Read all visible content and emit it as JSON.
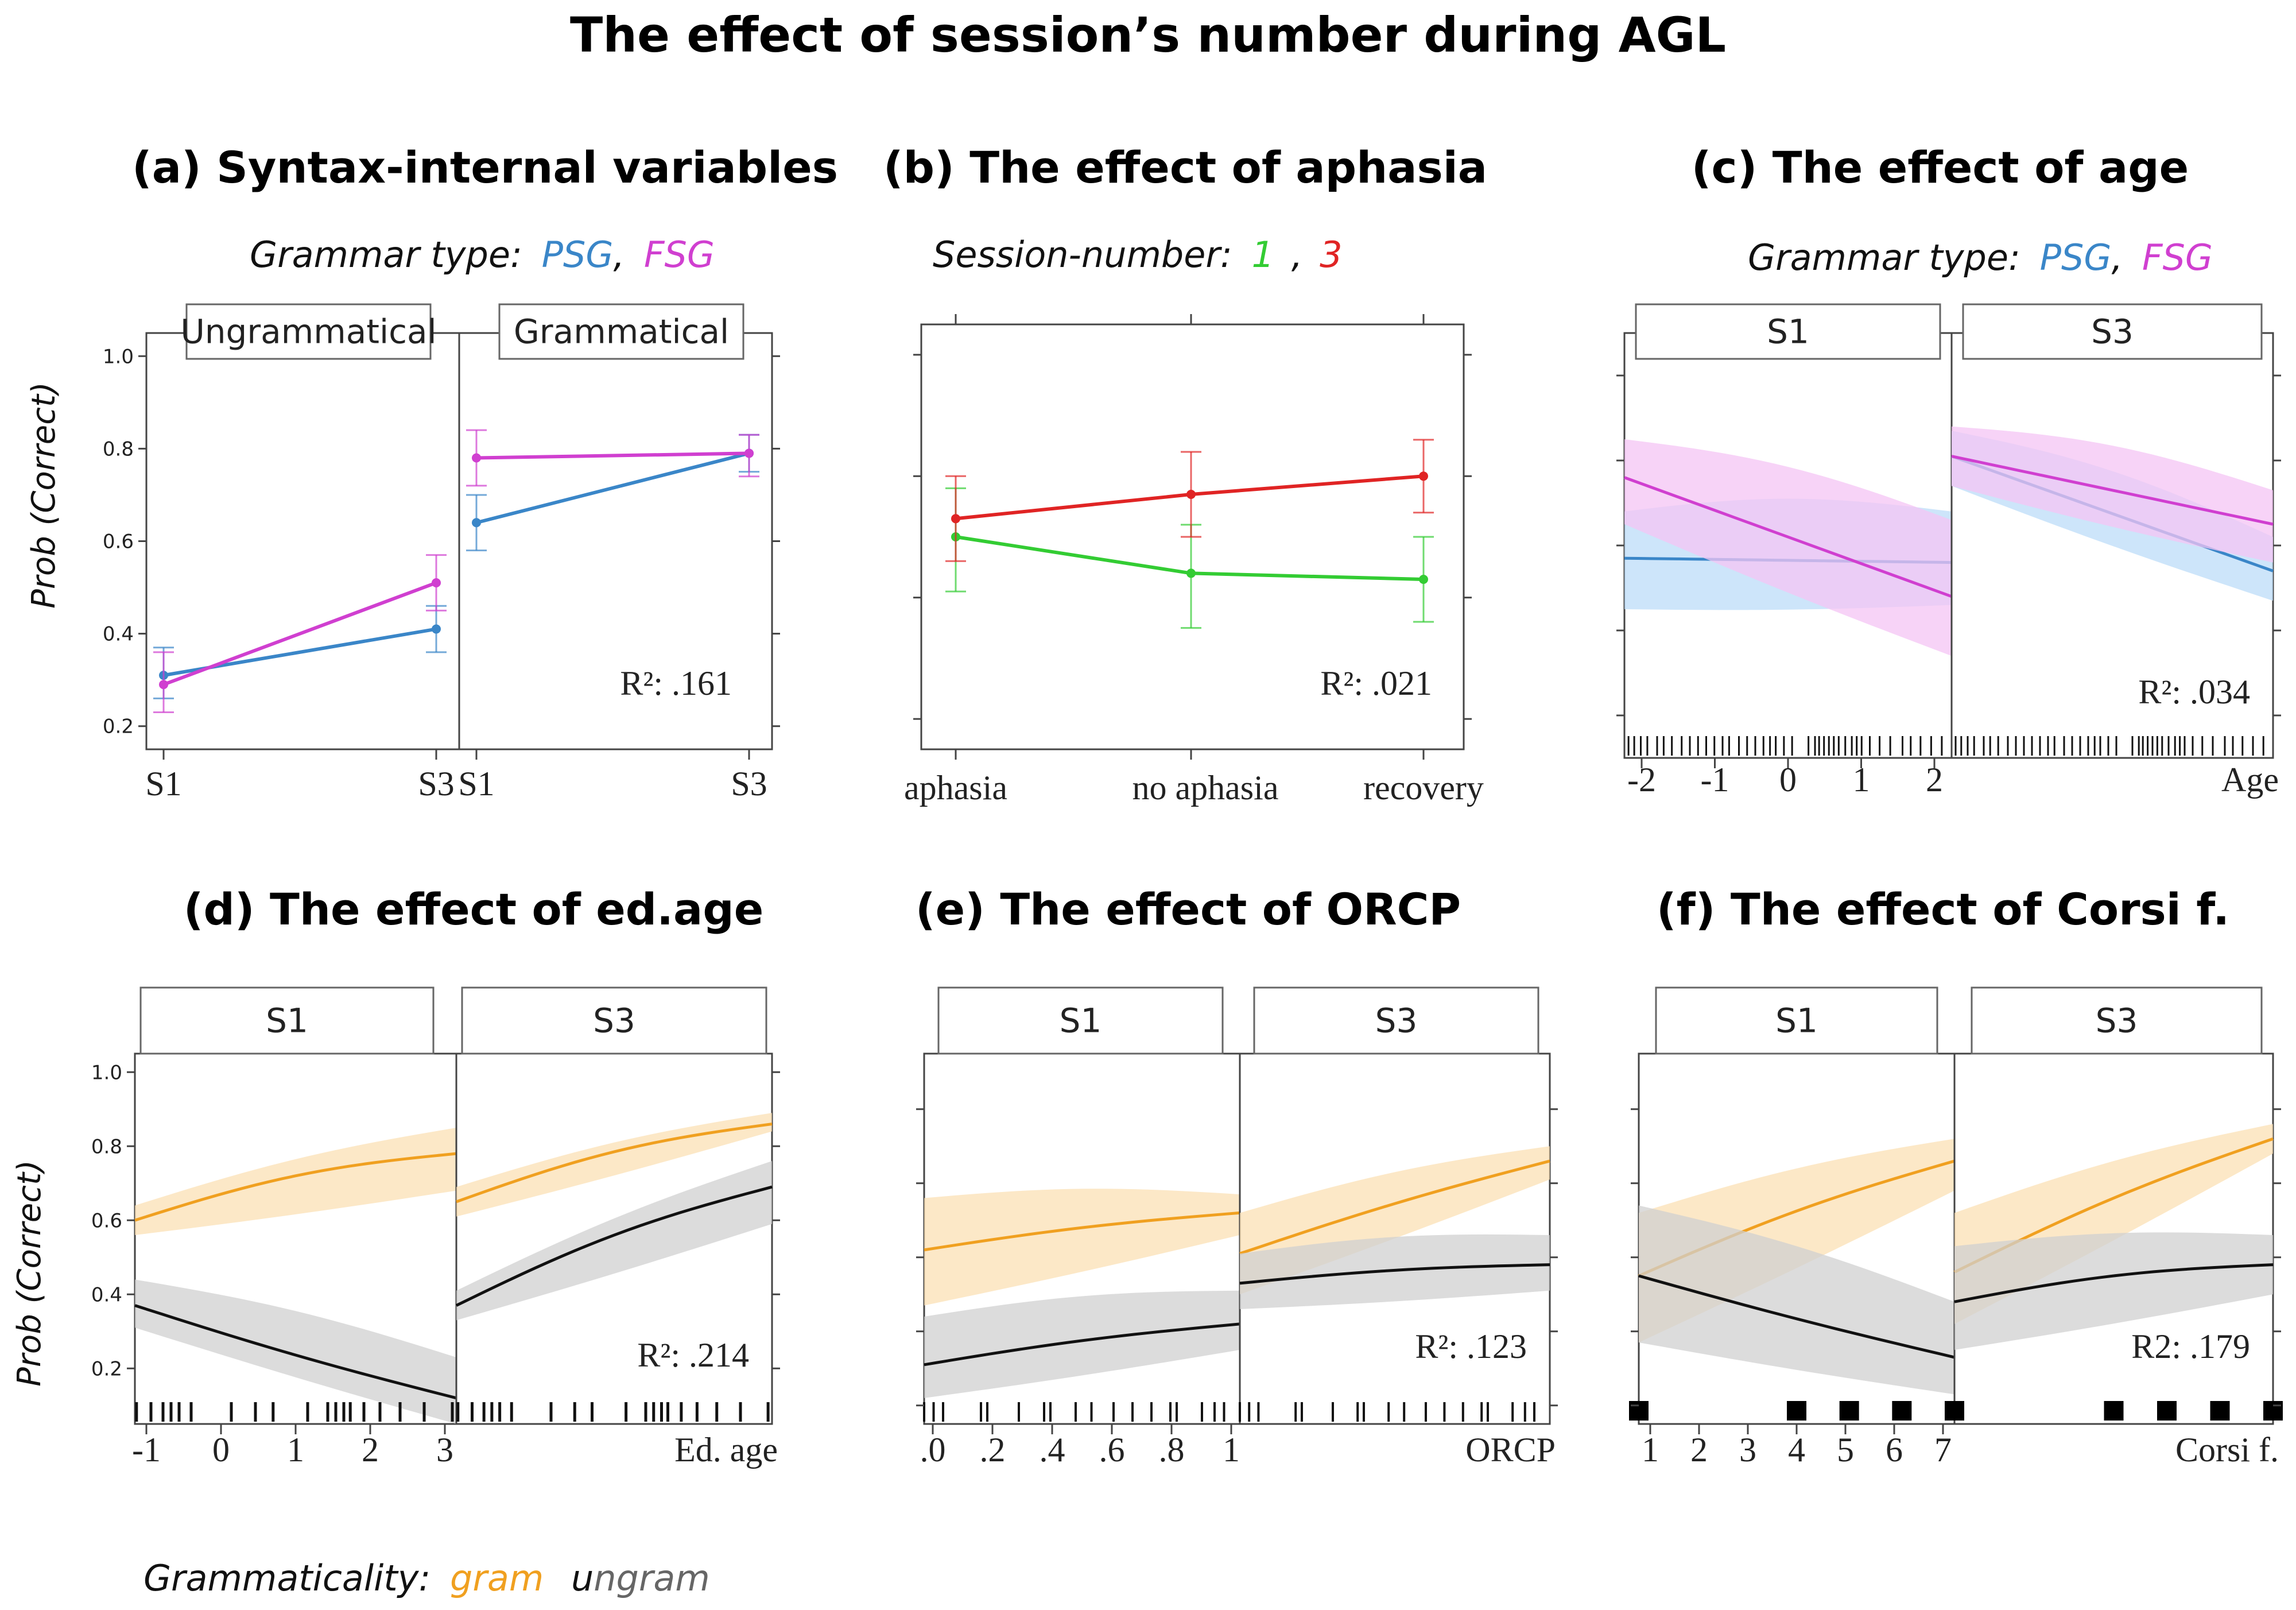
{
  "main_title": "The effect of session’s number during AGL",
  "colors": {
    "psg": "#3a86c8",
    "fsg": "#d03fd0",
    "session1": "#33cc33",
    "session3": "#e02424",
    "gram": "#f0a020",
    "ungram": "#111111",
    "gram_band": "#fbe0b4",
    "ungram_band": "#d0d0d0",
    "psg_band": "#bcdcf8",
    "fsg_band": "#f4c4f4"
  },
  "legends": {
    "grammar": {
      "prefix": "Grammar type:",
      "psg": "PSG",
      "sep": ",",
      "fsg": "FSG"
    },
    "session": {
      "prefix": "Session-number:",
      "s1": "1",
      "sep": ",",
      "s3": "3"
    },
    "grammaticality": {
      "prefix": "Grammaticality:",
      "gram": "gram",
      "ungram_u": "u",
      "ungram_rest": "ngram"
    }
  },
  "y_axis_label": "Prob (Correct)",
  "chart_data": [
    {
      "id": "a",
      "type": "line",
      "title": "(a) Syntax-internal variables",
      "ylabel": "Prob (Correct)",
      "ylim": [
        0.15,
        1.05
      ],
      "yticks": [
        "1.0",
        "0.8",
        "0.6",
        "0.4",
        "0.2"
      ],
      "r2": "R²: .161",
      "panels": [
        {
          "strip": "Ungrammatical",
          "x_labels": [
            "S1",
            "S3"
          ],
          "series": [
            {
              "name": "PSG",
              "values": [
                0.31,
                0.41
              ],
              "ci": [
                [
                  0.26,
                  0.37
                ],
                [
                  0.36,
                  0.46
                ]
              ]
            },
            {
              "name": "FSG",
              "values": [
                0.29,
                0.51
              ],
              "ci": [
                [
                  0.23,
                  0.36
                ],
                [
                  0.45,
                  0.57
                ]
              ]
            }
          ]
        },
        {
          "strip": "Grammatical",
          "x_labels": [
            "S1",
            "S3"
          ],
          "series": [
            {
              "name": "PSG",
              "values": [
                0.64,
                0.79
              ],
              "ci": [
                [
                  0.58,
                  0.7
                ],
                [
                  0.75,
                  0.83
                ]
              ]
            },
            {
              "name": "FSG",
              "values": [
                0.78,
                0.79
              ],
              "ci": [
                [
                  0.72,
                  0.84
                ],
                [
                  0.74,
                  0.83
                ]
              ]
            }
          ]
        }
      ]
    },
    {
      "id": "b",
      "type": "line",
      "title": "(b) The effect of aphasia",
      "ylim": [
        0.2,
        0.9
      ],
      "r2": "R²: .021",
      "categories": [
        "aphasia",
        "no aphasia",
        "recovery"
      ],
      "series": [
        {
          "name": "1",
          "values": [
            0.55,
            0.49,
            0.48
          ],
          "ci": [
            [
              0.46,
              0.63
            ],
            [
              0.4,
              0.57
            ],
            [
              0.41,
              0.55
            ]
          ]
        },
        {
          "name": "3",
          "values": [
            0.58,
            0.62,
            0.65
          ],
          "ci": [
            [
              0.51,
              0.65
            ],
            [
              0.55,
              0.69
            ],
            [
              0.59,
              0.71
            ]
          ]
        }
      ]
    },
    {
      "id": "c",
      "type": "line",
      "title": "(c) The effect of age",
      "ylim": [
        0.0,
        1.0
      ],
      "r2": "R²: .034",
      "xlabel": "Age",
      "x_tick_labels": [
        "-2",
        "-1",
        "0",
        "1",
        "2"
      ],
      "panels": [
        {
          "strip": "S1",
          "x": [
            -2,
            2
          ],
          "series": [
            {
              "name": "PSG",
              "values": [
                0.47,
                0.46
              ],
              "lower": [
                0.35,
                0.36
              ],
              "upper": [
                0.58,
                0.58
              ]
            },
            {
              "name": "FSG",
              "values": [
                0.66,
                0.38
              ],
              "lower": [
                0.55,
                0.24
              ],
              "upper": [
                0.75,
                0.56
              ]
            }
          ]
        },
        {
          "strip": "S3",
          "x": [
            -2,
            2
          ],
          "series": [
            {
              "name": "PSG",
              "values": [
                0.71,
                0.44
              ],
              "lower": [
                0.64,
                0.37
              ],
              "upper": [
                0.77,
                0.52
              ]
            },
            {
              "name": "FSG",
              "values": [
                0.71,
                0.55
              ],
              "lower": [
                0.64,
                0.46
              ],
              "upper": [
                0.78,
                0.63
              ]
            }
          ]
        }
      ],
      "rug": [
        -1.95,
        -1.88,
        -1.8,
        -1.72,
        -1.6,
        -1.52,
        -1.42,
        -1.3,
        -1.2,
        -1.1,
        -1.0,
        -0.9,
        -0.8,
        -0.72,
        -0.6,
        -0.5,
        -0.4,
        -0.3,
        -0.22,
        -0.15,
        -0.05,
        0.05,
        0.25,
        0.33,
        0.38,
        0.44,
        0.5,
        0.56,
        0.62,
        0.7,
        0.78,
        0.84,
        0.9,
        1.0,
        1.12,
        1.25,
        1.4,
        1.5,
        1.62,
        1.75,
        1.88
      ]
    },
    {
      "id": "d",
      "type": "line",
      "title": "(d) The effect of ed.age",
      "ylim": [
        0.05,
        1.05
      ],
      "yticks": [
        "1.0",
        "0.8",
        "0.6",
        "0.4",
        "0.2"
      ],
      "ylabel": "Prob (Correct)",
      "r2": "R²: .214",
      "xlabel": "Ed. age",
      "x_tick_labels": [
        "-1",
        "0",
        "1",
        "2",
        "3"
      ],
      "panels": [
        {
          "strip": "S1",
          "x": [
            -1,
            3
          ],
          "series": [
            {
              "name": "gram",
              "values": [
                0.6,
                0.78
              ],
              "lower": [
                0.56,
                0.68
              ],
              "upper": [
                0.64,
                0.85
              ]
            },
            {
              "name": "ungram",
              "values": [
                0.37,
                0.12
              ],
              "lower": [
                0.31,
                0.05
              ],
              "upper": [
                0.44,
                0.23
              ]
            }
          ]
        },
        {
          "strip": "S3",
          "x": [
            -1,
            3
          ],
          "series": [
            {
              "name": "gram",
              "values": [
                0.65,
                0.86
              ],
              "lower": [
                0.61,
                0.84
              ],
              "upper": [
                0.69,
                0.89
              ]
            },
            {
              "name": "ungram",
              "values": [
                0.37,
                0.69
              ],
              "lower": [
                0.33,
                0.59
              ],
              "upper": [
                0.41,
                0.76
              ]
            }
          ]
        }
      ],
      "rug": [
        -0.98,
        -0.8,
        -0.65,
        -0.55,
        -0.45,
        -0.3,
        0.2,
        0.5,
        0.72,
        1.15,
        1.4,
        1.5,
        1.6,
        1.68,
        1.85,
        2.05,
        2.3,
        2.6,
        2.95
      ]
    },
    {
      "id": "e",
      "type": "line",
      "title": "(e) The effect of ORCP",
      "ylim": [
        0.05,
        1.05
      ],
      "r2": "R²: .123",
      "xlabel": "ORCP",
      "x_tick_labels": [
        ".0",
        ".2",
        ".4",
        ".6",
        ".8",
        "1"
      ],
      "panels": [
        {
          "strip": "S1",
          "x": [
            0,
            1
          ],
          "series": [
            {
              "name": "gram",
              "values": [
                0.52,
                0.62
              ],
              "lower": [
                0.37,
                0.56
              ],
              "upper": [
                0.66,
                0.67
              ]
            },
            {
              "name": "ungram",
              "values": [
                0.21,
                0.32
              ],
              "lower": [
                0.12,
                0.25
              ],
              "upper": [
                0.34,
                0.41
              ]
            }
          ]
        },
        {
          "strip": "S3",
          "x": [
            0,
            1
          ],
          "series": [
            {
              "name": "gram",
              "values": [
                0.51,
                0.76
              ],
              "lower": [
                0.4,
                0.71
              ],
              "upper": [
                0.62,
                0.8
              ]
            },
            {
              "name": "ungram",
              "values": [
                0.43,
                0.48
              ],
              "lower": [
                0.36,
                0.41
              ],
              "upper": [
                0.51,
                0.56
              ]
            }
          ]
        }
      ],
      "rug": [
        0.0,
        0.03,
        0.06,
        0.18,
        0.2,
        0.3,
        0.38,
        0.4,
        0.48,
        0.53,
        0.6,
        0.66,
        0.72,
        0.78,
        0.8,
        0.88,
        0.92,
        0.95
      ]
    },
    {
      "id": "f",
      "type": "line",
      "title": "(f) The effect of Corsi f.",
      "ylim": [
        0.05,
        1.05
      ],
      "r2": "R2: .179",
      "xlabel": "Corsi f.",
      "x_tick_labels": [
        "1",
        "2",
        "3",
        "4",
        "5",
        "6",
        "7"
      ],
      "panels": [
        {
          "strip": "S1",
          "x": [
            1,
            7
          ],
          "series": [
            {
              "name": "gram",
              "values": [
                0.45,
                0.76
              ],
              "lower": [
                0.27,
                0.68
              ],
              "upper": [
                0.62,
                0.82
              ]
            },
            {
              "name": "ungram",
              "values": [
                0.45,
                0.23
              ],
              "lower": [
                0.27,
                0.13
              ],
              "upper": [
                0.64,
                0.38
              ]
            }
          ]
        },
        {
          "strip": "S3",
          "x": [
            1,
            7
          ],
          "series": [
            {
              "name": "gram",
              "values": [
                0.46,
                0.82
              ],
              "lower": [
                0.32,
                0.78
              ],
              "upper": [
                0.62,
                0.86
              ]
            },
            {
              "name": "ungram",
              "values": [
                0.38,
                0.48
              ],
              "lower": [
                0.25,
                0.4
              ],
              "upper": [
                0.53,
                0.56
              ]
            }
          ]
        }
      ],
      "rug": [
        1,
        4,
        5,
        6,
        7
      ]
    }
  ]
}
